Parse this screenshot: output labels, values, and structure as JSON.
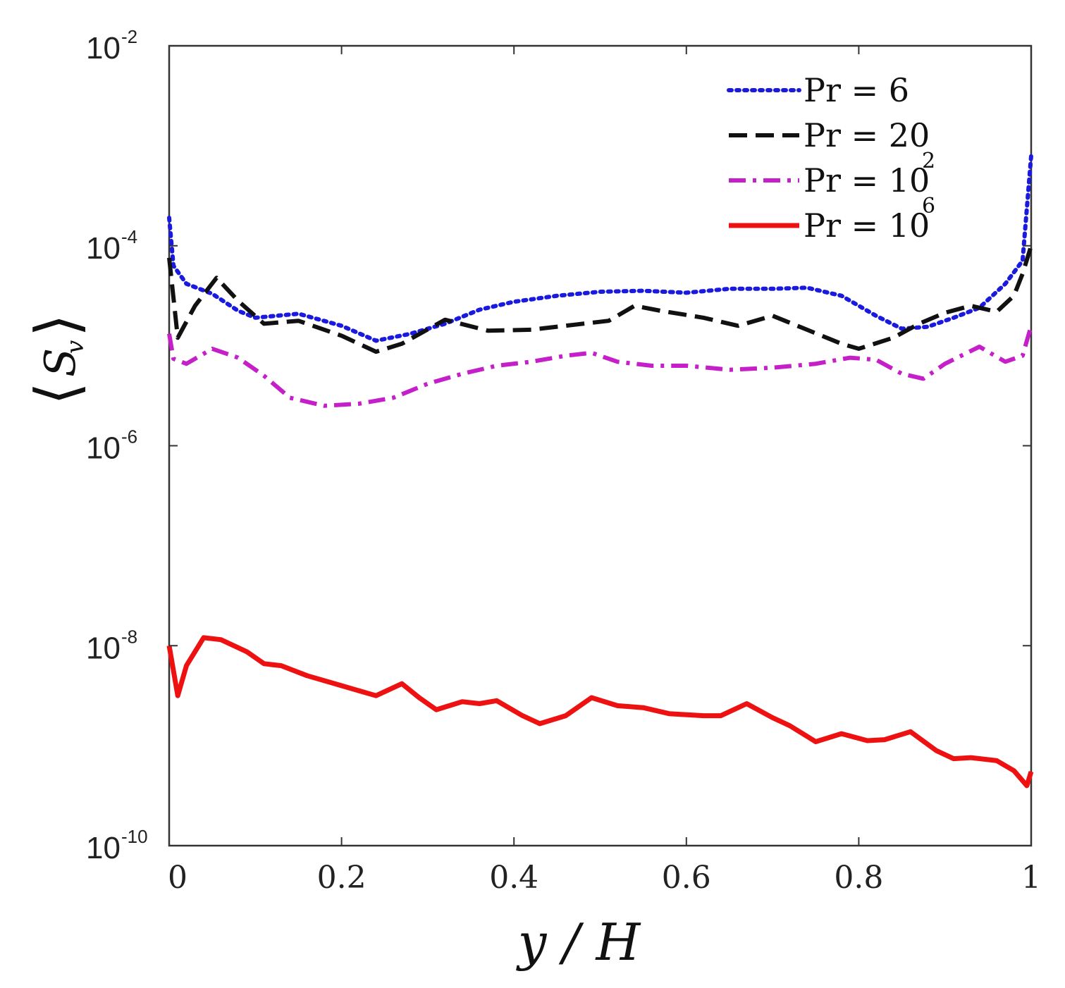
{
  "chart_data": {
    "type": "line",
    "title": "",
    "xlabel": "y / H",
    "ylabel": {
      "open": "⟨",
      "symbol": "S",
      "subscript": "v",
      "close": "⟩"
    },
    "x_ticks": [
      "0",
      "0.2",
      "0.4",
      "0.6",
      "0.8",
      "1"
    ],
    "x_tick_values": [
      0,
      0.2,
      0.4,
      0.6,
      0.8,
      1
    ],
    "y_ticks": [
      {
        "base": "10",
        "exp": "-10",
        "value": -10
      },
      {
        "base": "10",
        "exp": "-8",
        "value": -8
      },
      {
        "base": "10",
        "exp": "-6",
        "value": -6
      },
      {
        "base": "10",
        "exp": "-4",
        "value": -4
      },
      {
        "base": "10",
        "exp": "-2",
        "value": -2
      }
    ],
    "xlim": [
      0,
      1
    ],
    "ylim_log10": [
      -10,
      -2
    ],
    "yscale": "log",
    "grid": false,
    "legend_position": "top-right",
    "series": [
      {
        "name": "Pr = 6",
        "legend": {
          "text": "Pr = 6",
          "exp": ""
        },
        "color": "#1a1adf",
        "style": "dotted",
        "points_log10": [
          [
            0,
            -3.72
          ],
          [
            0.005,
            -4.2
          ],
          [
            0.02,
            -4.38
          ],
          [
            0.05,
            -4.48
          ],
          [
            0.08,
            -4.65
          ],
          [
            0.1,
            -4.72
          ],
          [
            0.15,
            -4.68
          ],
          [
            0.2,
            -4.8
          ],
          [
            0.24,
            -4.95
          ],
          [
            0.28,
            -4.88
          ],
          [
            0.32,
            -4.78
          ],
          [
            0.36,
            -4.64
          ],
          [
            0.4,
            -4.56
          ],
          [
            0.45,
            -4.5
          ],
          [
            0.5,
            -4.46
          ],
          [
            0.55,
            -4.45
          ],
          [
            0.6,
            -4.47
          ],
          [
            0.65,
            -4.43
          ],
          [
            0.7,
            -4.43
          ],
          [
            0.74,
            -4.42
          ],
          [
            0.78,
            -4.5
          ],
          [
            0.82,
            -4.7
          ],
          [
            0.85,
            -4.83
          ],
          [
            0.88,
            -4.81
          ],
          [
            0.91,
            -4.72
          ],
          [
            0.94,
            -4.62
          ],
          [
            0.97,
            -4.38
          ],
          [
            0.99,
            -4.15
          ],
          [
            1.0,
            -3.1
          ]
        ]
      },
      {
        "name": "Pr = 20",
        "legend": {
          "text": "Pr = 20",
          "exp": ""
        },
        "color": "#111111",
        "style": "dashed",
        "points_log10": [
          [
            0,
            -4.12
          ],
          [
            0.01,
            -4.92
          ],
          [
            0.03,
            -4.6
          ],
          [
            0.055,
            -4.32
          ],
          [
            0.08,
            -4.55
          ],
          [
            0.11,
            -4.78
          ],
          [
            0.15,
            -4.75
          ],
          [
            0.2,
            -4.9
          ],
          [
            0.24,
            -5.06
          ],
          [
            0.27,
            -4.98
          ],
          [
            0.32,
            -4.74
          ],
          [
            0.37,
            -4.85
          ],
          [
            0.42,
            -4.84
          ],
          [
            0.47,
            -4.79
          ],
          [
            0.51,
            -4.75
          ],
          [
            0.54,
            -4.6
          ],
          [
            0.57,
            -4.65
          ],
          [
            0.62,
            -4.72
          ],
          [
            0.66,
            -4.8
          ],
          [
            0.7,
            -4.7
          ],
          [
            0.74,
            -4.84
          ],
          [
            0.78,
            -4.98
          ],
          [
            0.8,
            -5.03
          ],
          [
            0.84,
            -4.92
          ],
          [
            0.87,
            -4.78
          ],
          [
            0.9,
            -4.67
          ],
          [
            0.93,
            -4.6
          ],
          [
            0.96,
            -4.66
          ],
          [
            0.98,
            -4.5
          ],
          [
            0.99,
            -4.28
          ],
          [
            1.0,
            -4.0
          ]
        ]
      },
      {
        "name": "Pr = 10^2",
        "legend": {
          "text": "Pr = 10",
          "exp": "2"
        },
        "color": "#c41fc8",
        "style": "dashdot",
        "points_log10": [
          [
            0,
            -4.88
          ],
          [
            0.005,
            -5.13
          ],
          [
            0.02,
            -5.18
          ],
          [
            0.05,
            -5.03
          ],
          [
            0.08,
            -5.12
          ],
          [
            0.11,
            -5.3
          ],
          [
            0.14,
            -5.52
          ],
          [
            0.18,
            -5.6
          ],
          [
            0.22,
            -5.58
          ],
          [
            0.26,
            -5.52
          ],
          [
            0.3,
            -5.38
          ],
          [
            0.34,
            -5.28
          ],
          [
            0.38,
            -5.2
          ],
          [
            0.42,
            -5.16
          ],
          [
            0.46,
            -5.1
          ],
          [
            0.49,
            -5.07
          ],
          [
            0.52,
            -5.16
          ],
          [
            0.56,
            -5.2
          ],
          [
            0.6,
            -5.2
          ],
          [
            0.65,
            -5.24
          ],
          [
            0.7,
            -5.22
          ],
          [
            0.75,
            -5.18
          ],
          [
            0.79,
            -5.12
          ],
          [
            0.82,
            -5.14
          ],
          [
            0.85,
            -5.28
          ],
          [
            0.875,
            -5.33
          ],
          [
            0.9,
            -5.18
          ],
          [
            0.94,
            -5.01
          ],
          [
            0.97,
            -5.16
          ],
          [
            0.99,
            -5.1
          ],
          [
            1.0,
            -4.8
          ]
        ]
      },
      {
        "name": "Pr = 10^6",
        "legend": {
          "text": "Pr = 10",
          "exp": "6"
        },
        "color": "#ee1111",
        "style": "solid",
        "points_log10": [
          [
            0,
            -8.0
          ],
          [
            0.01,
            -8.5
          ],
          [
            0.02,
            -8.2
          ],
          [
            0.04,
            -7.92
          ],
          [
            0.06,
            -7.94
          ],
          [
            0.09,
            -8.06
          ],
          [
            0.11,
            -8.18
          ],
          [
            0.13,
            -8.2
          ],
          [
            0.16,
            -8.3
          ],
          [
            0.2,
            -8.4
          ],
          [
            0.24,
            -8.5
          ],
          [
            0.27,
            -8.38
          ],
          [
            0.29,
            -8.52
          ],
          [
            0.31,
            -8.64
          ],
          [
            0.34,
            -8.56
          ],
          [
            0.36,
            -8.58
          ],
          [
            0.38,
            -8.55
          ],
          [
            0.41,
            -8.7
          ],
          [
            0.43,
            -8.78
          ],
          [
            0.46,
            -8.7
          ],
          [
            0.49,
            -8.52
          ],
          [
            0.52,
            -8.6
          ],
          [
            0.55,
            -8.62
          ],
          [
            0.58,
            -8.68
          ],
          [
            0.62,
            -8.7
          ],
          [
            0.64,
            -8.7
          ],
          [
            0.67,
            -8.58
          ],
          [
            0.7,
            -8.72
          ],
          [
            0.72,
            -8.8
          ],
          [
            0.75,
            -8.96
          ],
          [
            0.78,
            -8.88
          ],
          [
            0.81,
            -8.95
          ],
          [
            0.83,
            -8.94
          ],
          [
            0.86,
            -8.86
          ],
          [
            0.89,
            -9.05
          ],
          [
            0.91,
            -9.13
          ],
          [
            0.93,
            -9.12
          ],
          [
            0.96,
            -9.15
          ],
          [
            0.98,
            -9.25
          ],
          [
            0.995,
            -9.4
          ],
          [
            1.0,
            -9.26
          ]
        ]
      }
    ]
  }
}
